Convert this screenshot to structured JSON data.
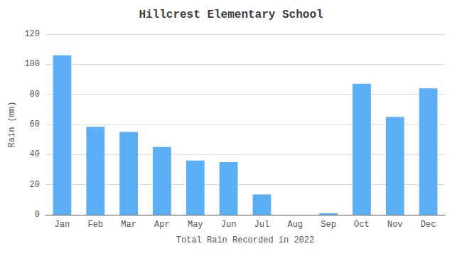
{
  "chart_data": {
    "type": "bar",
    "title": "Hillcrest Elementary School",
    "xlabel": "Total Rain Recorded in 2022",
    "ylabel": "Rain (mm)",
    "categories": [
      "Jan",
      "Feb",
      "Mar",
      "Apr",
      "May",
      "Jun",
      "Jul",
      "Aug",
      "Sep",
      "Oct",
      "Nov",
      "Dec"
    ],
    "values": [
      106,
      58.5,
      55,
      45,
      36,
      35,
      13.5,
      0,
      1,
      87,
      65,
      84
    ],
    "color": "#5aaff5",
    "ylim": [
      0,
      120
    ],
    "yticks": [
      0,
      20,
      40,
      60,
      80,
      100,
      120
    ],
    "grid": true
  }
}
